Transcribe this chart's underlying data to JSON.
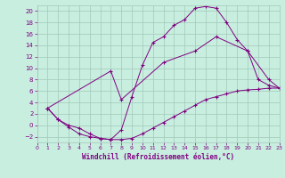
{
  "xlabel": "Windchill (Refroidissement éolien,°C)",
  "bg_color": "#c8eee0",
  "grid_color": "#a0c8b8",
  "line_color": "#800080",
  "xlim": [
    0,
    23
  ],
  "ylim": [
    -3,
    21
  ],
  "xticks": [
    0,
    1,
    2,
    3,
    4,
    5,
    6,
    7,
    8,
    9,
    10,
    11,
    12,
    13,
    14,
    15,
    16,
    17,
    18,
    19,
    20,
    21,
    22,
    23
  ],
  "yticks": [
    -2,
    0,
    2,
    4,
    6,
    8,
    10,
    12,
    14,
    16,
    18,
    20
  ],
  "series": [
    {
      "x": [
        1,
        2,
        3,
        4,
        5,
        6,
        7,
        8,
        9,
        10,
        11,
        12,
        13,
        14,
        15,
        16,
        17,
        18,
        19,
        20,
        21,
        22,
        23
      ],
      "y": [
        3,
        1,
        0,
        -0.5,
        -1.5,
        -2.3,
        -2.5,
        -0.8,
        5,
        10.5,
        14.5,
        15.5,
        17.5,
        18.5,
        20.5,
        20.8,
        20.5,
        18,
        15,
        13,
        8,
        7,
        6.5
      ]
    },
    {
      "x": [
        1,
        2,
        3,
        4,
        5,
        6,
        7,
        8,
        9,
        10,
        11,
        12,
        13,
        14,
        15,
        16,
        17,
        18,
        19,
        20,
        21,
        22,
        23
      ],
      "y": [
        3,
        1,
        -0.3,
        -1.5,
        -2,
        -2.3,
        -2.5,
        -2.5,
        -2.3,
        -1.5,
        -0.5,
        0.5,
        1.5,
        2.5,
        3.5,
        4.5,
        5,
        5.5,
        6,
        6.2,
        6.3,
        6.5,
        6.5
      ]
    },
    {
      "x": [
        1,
        7,
        8,
        12,
        15,
        17,
        20,
        22,
        23
      ],
      "y": [
        3,
        9.5,
        4.5,
        11,
        13,
        15.5,
        13,
        8,
        6.5
      ]
    }
  ]
}
